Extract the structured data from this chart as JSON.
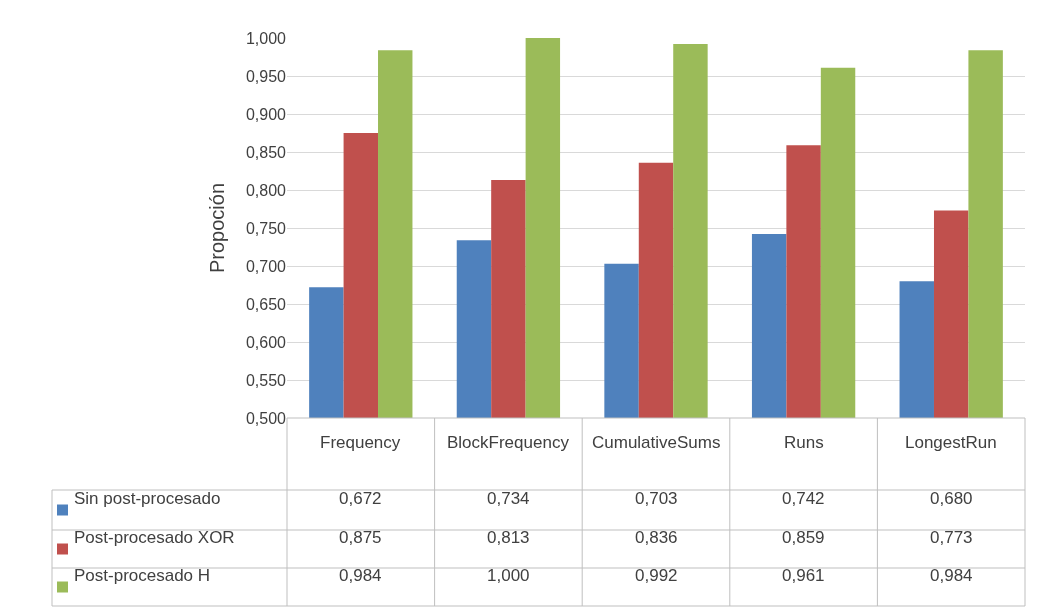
{
  "chart_data": {
    "type": "bar",
    "ylabel": "Propoción",
    "categories": [
      "Frequency",
      "BlockFrequency",
      "CumulativeSums",
      "Runs",
      "LongestRun"
    ],
    "series": [
      {
        "name": "Sin post-procesado",
        "color": "#4f81bd",
        "values": [
          0.672,
          0.734,
          0.703,
          0.742,
          0.68
        ],
        "value_labels": [
          "0,672",
          "0,734",
          "0,703",
          "0,742",
          "0,680"
        ]
      },
      {
        "name": "Post-procesado XOR",
        "color": "#c0504d",
        "values": [
          0.875,
          0.813,
          0.836,
          0.859,
          0.773
        ],
        "value_labels": [
          "0,875",
          "0,813",
          "0,836",
          "0,859",
          "0,773"
        ]
      },
      {
        "name": "Post-procesado H",
        "color": "#9bbb59",
        "values": [
          0.984,
          1.0,
          0.992,
          0.961,
          0.984
        ],
        "value_labels": [
          "0,984",
          "1,000",
          "0,992",
          "0,961",
          "0,984"
        ]
      }
    ],
    "ylim": [
      0.5,
      1.0
    ],
    "yticks": [
      {
        "value": 0.5,
        "label": "0,500"
      },
      {
        "value": 0.55,
        "label": "0,550"
      },
      {
        "value": 0.6,
        "label": "0,600"
      },
      {
        "value": 0.65,
        "label": "0,650"
      },
      {
        "value": 0.7,
        "label": "0,700"
      },
      {
        "value": 0.75,
        "label": "0,750"
      },
      {
        "value": 0.8,
        "label": "0,800"
      },
      {
        "value": 0.85,
        "label": "0,850"
      },
      {
        "value": 0.9,
        "label": "0,900"
      },
      {
        "value": 0.95,
        "label": "0,950"
      },
      {
        "value": 1.0,
        "label": "1,000"
      }
    ],
    "grid": "y",
    "legend": "bottom"
  }
}
